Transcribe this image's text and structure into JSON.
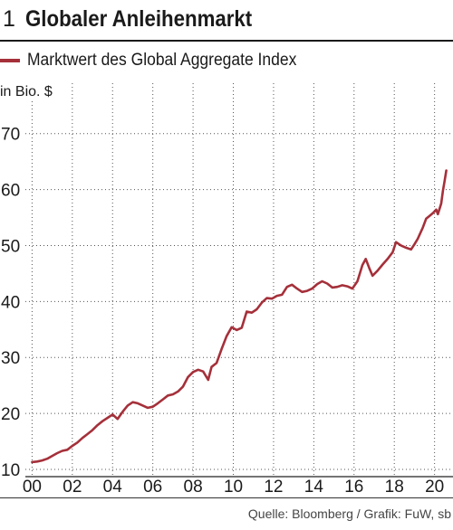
{
  "figure_number": "1",
  "source": "Quelle: Bloomberg / Grafik: FuW, sb",
  "chart_data": {
    "type": "line",
    "title": "Globaler Anleihenmarkt",
    "ylabel": "in Bio. $",
    "xlim": [
      "1999-09",
      "2020-12"
    ],
    "ylim": [
      8.7,
      79
    ],
    "yticks": [
      10,
      20,
      30,
      40,
      50,
      60,
      70
    ],
    "xticks": [
      {
        "date": "2000-01",
        "label": "00"
      },
      {
        "date": "2002-01",
        "label": "02"
      },
      {
        "date": "2004-01",
        "label": "04"
      },
      {
        "date": "2006-01",
        "label": "06"
      },
      {
        "date": "2008-01",
        "label": "08"
      },
      {
        "date": "2010-01",
        "label": "10"
      },
      {
        "date": "2012-01",
        "label": "12"
      },
      {
        "date": "2014-01",
        "label": "14"
      },
      {
        "date": "2016-01",
        "label": "16"
      },
      {
        "date": "2018-01",
        "label": "18"
      },
      {
        "date": "2020-01",
        "label": "20"
      }
    ],
    "grid": true,
    "legend_position": "top-left",
    "x": [
      "2000-01",
      "2000-04",
      "2000-07",
      "2000-10",
      "2001-01",
      "2001-04",
      "2001-07",
      "2001-10",
      "2002-01",
      "2002-04",
      "2002-07",
      "2002-10",
      "2003-01",
      "2003-04",
      "2003-07",
      "2003-10",
      "2004-01",
      "2004-04",
      "2004-07",
      "2004-10",
      "2005-01",
      "2005-04",
      "2005-07",
      "2005-10",
      "2006-01",
      "2006-04",
      "2006-07",
      "2006-10",
      "2007-01",
      "2007-04",
      "2007-07",
      "2007-10",
      "2008-01",
      "2008-04",
      "2008-07",
      "2008-10",
      "2008-12",
      "2009-03",
      "2009-06",
      "2009-09",
      "2009-12",
      "2010-03",
      "2010-06",
      "2010-09",
      "2010-12",
      "2011-03",
      "2011-06",
      "2011-09",
      "2011-12",
      "2012-03",
      "2012-06",
      "2012-09",
      "2012-12",
      "2013-03",
      "2013-06",
      "2013-09",
      "2013-12",
      "2014-03",
      "2014-06",
      "2014-09",
      "2014-12",
      "2015-03",
      "2015-06",
      "2015-09",
      "2015-12",
      "2016-03",
      "2016-06",
      "2016-08",
      "2016-10",
      "2016-12",
      "2017-03",
      "2017-06",
      "2017-09",
      "2017-12",
      "2018-02",
      "2018-05",
      "2018-08",
      "2018-11",
      "2019-01",
      "2019-03",
      "2019-06",
      "2019-08",
      "2019-10",
      "2019-12",
      "2020-02",
      "2020-03",
      "2020-05",
      "2020-06",
      "2020-07",
      "2020-08"
    ],
    "series": [
      {
        "name": "Marktwert des Global Aggregate Index",
        "color": "#a5303a",
        "values": [
          11.3,
          11.4,
          11.6,
          11.9,
          12.4,
          12.9,
          13.3,
          13.5,
          14.2,
          14.8,
          15.6,
          16.3,
          17.0,
          17.9,
          18.6,
          19.2,
          19.8,
          19.0,
          20.3,
          21.4,
          22.0,
          21.8,
          21.4,
          21.0,
          21.2,
          21.8,
          22.5,
          23.2,
          23.4,
          23.9,
          24.8,
          26.5,
          27.4,
          27.8,
          27.5,
          26.0,
          28.3,
          29.0,
          31.5,
          33.8,
          35.4,
          34.9,
          35.3,
          38.2,
          38.0,
          38.6,
          39.8,
          40.6,
          40.5,
          41.0,
          41.2,
          42.6,
          43.0,
          42.3,
          41.7,
          41.9,
          42.3,
          43.1,
          43.6,
          43.2,
          42.5,
          42.6,
          42.9,
          42.7,
          42.3,
          43.6,
          46.5,
          47.6,
          46.0,
          44.6,
          45.5,
          46.6,
          47.6,
          48.8,
          50.6,
          50.0,
          49.6,
          49.3,
          50.2,
          51.2,
          53.2,
          54.8,
          55.3,
          55.8,
          56.4,
          55.6,
          57.5,
          59.8,
          61.5,
          63.4
        ]
      }
    ]
  }
}
